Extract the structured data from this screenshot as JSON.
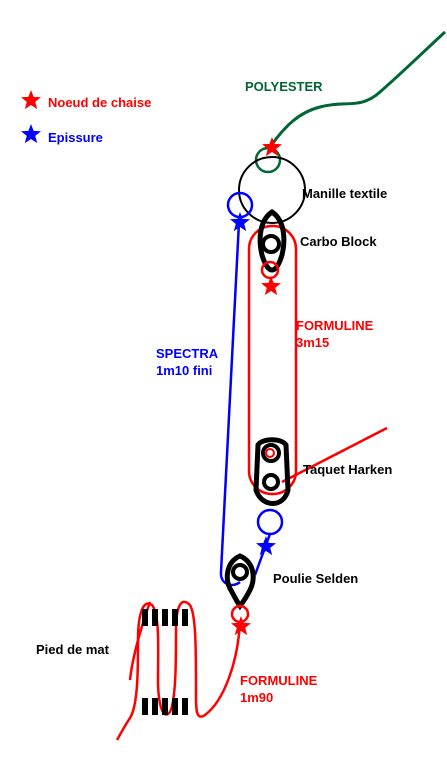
{
  "legend": {
    "items": [
      {
        "label": "Noeud de chaise",
        "icon": "star-icon",
        "color": "#ff0000"
      },
      {
        "label": "Epissure",
        "icon": "star-icon",
        "color": "#0000ff"
      }
    ]
  },
  "labels": {
    "polyester": "POLYESTER",
    "manille": "Manille textile",
    "carbo": "Carbo Block",
    "formuline_top": "FORMULINE",
    "formuline_top_len": "3m15",
    "spectra": "SPECTRA",
    "spectra_len": "1m10 fini",
    "taquet": "Taquet Harken",
    "poulie": "Poulie Selden",
    "pied": "Pied de mat",
    "formuline_bottom": "FORMULINE",
    "formuline_bottom_len": "1m90"
  },
  "colors": {
    "red": "#ff0000",
    "blue": "#0000ff",
    "green": "#006633",
    "black": "#000000"
  }
}
